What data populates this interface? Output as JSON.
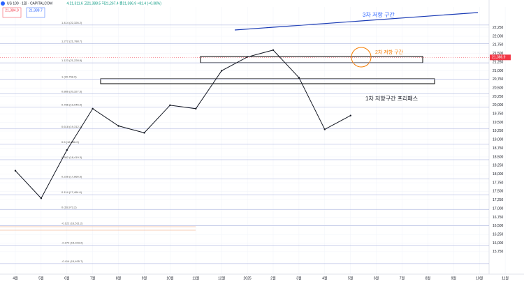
{
  "header": {
    "symbol": "US 100 · 1일 · CAPITALCOM",
    "ohlc": "시21,311.6 고21,388.5 저21,267.4 종21,386.9 +81.4 (+0.38%)",
    "sell": "21,384.9",
    "buy": "21,388.7"
  },
  "chart_data": {
    "type": "line",
    "categories": [
      "4월",
      "5월",
      "6월",
      "7월",
      "8월",
      "9월",
      "10월",
      "11월",
      "12월",
      "2025",
      "2월",
      "3월",
      "4월",
      "5월",
      "6월",
      "7월",
      "8월",
      "9월",
      "10월",
      "11월"
    ],
    "series": [
      {
        "color": "#131722",
        "values": [
          18100,
          17300,
          18700,
          19900,
          19400,
          19200,
          20000,
          19900,
          21000,
          21400,
          21600,
          20800,
          19300,
          19700,
          null,
          null,
          null,
          null,
          null,
          null
        ]
      }
    ],
    "ylim": [
      15100,
      22850
    ],
    "yticks": [
      {
        "value": 22250,
        "label": "22,250"
      },
      {
        "value": 22000,
        "label": "22,000"
      },
      {
        "value": 21750,
        "label": "21,750"
      },
      {
        "value": 21500,
        "label": "21,500"
      },
      {
        "value": 21250,
        "label": "21,250"
      },
      {
        "value": 21000,
        "label": "21,000"
      },
      {
        "value": 20750,
        "label": "20,750"
      },
      {
        "value": 20500,
        "label": "20,500"
      },
      {
        "value": 20250,
        "label": "20,250"
      },
      {
        "value": 20000,
        "label": "20,000"
      },
      {
        "value": 19750,
        "label": "19,750"
      },
      {
        "value": 19500,
        "label": "19,500"
      },
      {
        "value": 19250,
        "label": "19,250"
      },
      {
        "value": 19000,
        "label": "19,000"
      },
      {
        "value": 18750,
        "label": "18,750"
      },
      {
        "value": 18500,
        "label": "18,500"
      },
      {
        "value": 18250,
        "label": "18,250"
      },
      {
        "value": 18000,
        "label": "18,000"
      },
      {
        "value": 17750,
        "label": "17,750"
      },
      {
        "value": 17500,
        "label": "17,500"
      },
      {
        "value": 17250,
        "label": "17,250"
      },
      {
        "value": 17000,
        "label": "17,000"
      },
      {
        "value": 16750,
        "label": "16,750"
      },
      {
        "value": 16500,
        "label": "16,500"
      },
      {
        "value": 16250,
        "label": "16,250"
      },
      {
        "value": 16000,
        "label": "16,000"
      },
      {
        "value": 15750,
        "label": "15,750"
      }
    ],
    "grid": true,
    "fib_levels": [
      {
        "value": 22326.2,
        "label": "1.414 (22,326.2)"
      },
      {
        "value": 21788.7,
        "label": "1.272 (21,788.7)"
      },
      {
        "value": 21228.8,
        "label": "1.123 (21,228.8)"
      },
      {
        "value": 20758.9,
        "label": "1 (20,758.9)"
      },
      {
        "value": 20327.5,
        "label": "0.886 (20,327.5)"
      },
      {
        "value": 19945.9,
        "label": "0.786 (19,945.9)"
      },
      {
        "value": 19312.7,
        "label": "0.618 (19,312.7)"
      },
      {
        "value": 18866.0,
        "label": "0.5 (18,866.0)"
      },
      {
        "value": 18419.3,
        "label": "0.382 (18,419.3)"
      },
      {
        "value": 17866.5,
        "label": "0.236 (17,866.5)"
      },
      {
        "value": 17404.6,
        "label": "0.114 (17,404.6)"
      },
      {
        "value": 16973.2,
        "label": "0 (16,973.2)"
      },
      {
        "value": 16511.2,
        "label": "-0.122 (16,511.2)"
      },
      {
        "value": 15943.2,
        "label": "-0.272 (15,943.2)"
      },
      {
        "value": 15405.7,
        "label": "-0.414 (15,405.7)"
      }
    ],
    "last_price": {
      "value": 21386.9,
      "label": "21,386.9"
    },
    "annotations": [
      "3차 저항 구간",
      "2차 저항 구간",
      "1차 저항구간 프리패스"
    ]
  }
}
